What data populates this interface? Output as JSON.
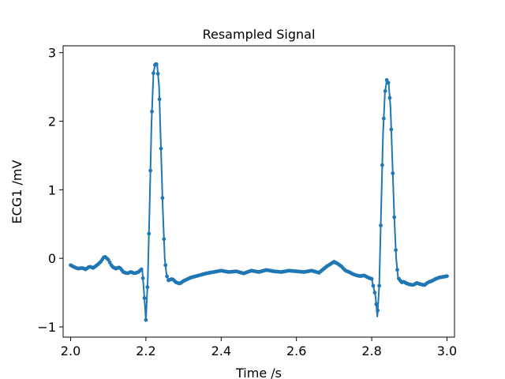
{
  "chart_data": {
    "type": "line",
    "title": "Resampled Signal",
    "xlabel": "Time /s",
    "ylabel": "ECG1 /mV",
    "xlim": [
      1.98,
      3.02
    ],
    "ylim": [
      -1.15,
      3.1
    ],
    "xticks": [
      2.0,
      2.2,
      2.4,
      2.6,
      2.8,
      3.0
    ],
    "xtick_labels": [
      "2.0",
      "2.2",
      "2.4",
      "2.6",
      "2.8",
      "3.0"
    ],
    "yticks": [
      -1,
      0,
      1,
      2,
      3
    ],
    "ytick_labels": [
      "−1",
      "0",
      "1",
      "2",
      "3"
    ],
    "grid": false,
    "marker": "circle",
    "series": [
      {
        "color": "#1f77b4",
        "x": [
          2.0,
          2.01,
          2.02,
          2.03,
          2.04,
          2.05,
          2.06,
          2.07,
          2.08,
          2.09,
          2.1,
          2.11,
          2.12,
          2.13,
          2.14,
          2.15,
          2.16,
          2.17,
          2.18,
          2.19,
          2.195,
          2.2,
          2.205,
          2.21,
          2.215,
          2.22,
          2.225,
          2.23,
          2.235,
          2.24,
          2.245,
          2.25,
          2.255,
          2.26,
          2.27,
          2.28,
          2.29,
          2.3,
          2.32,
          2.34,
          2.36,
          2.38,
          2.4,
          2.42,
          2.44,
          2.46,
          2.48,
          2.5,
          2.52,
          2.54,
          2.56,
          2.58,
          2.6,
          2.62,
          2.64,
          2.66,
          2.68,
          2.7,
          2.71,
          2.72,
          2.73,
          2.74,
          2.75,
          2.76,
          2.77,
          2.78,
          2.79,
          2.8,
          2.81,
          2.815,
          2.82,
          2.825,
          2.83,
          2.835,
          2.84,
          2.845,
          2.85,
          2.855,
          2.86,
          2.865,
          2.87,
          2.875,
          2.88,
          2.885,
          2.89,
          2.9,
          2.91,
          2.92,
          2.93,
          2.94,
          2.95,
          2.96,
          2.97,
          2.98,
          2.99,
          3.0
        ],
        "y": [
          -0.1,
          -0.13,
          -0.15,
          -0.14,
          -0.16,
          -0.12,
          -0.14,
          -0.1,
          -0.05,
          0.03,
          -0.02,
          -0.12,
          -0.15,
          -0.13,
          -0.2,
          -0.22,
          -0.2,
          -0.22,
          -0.2,
          -0.15,
          -0.5,
          -0.9,
          -0.3,
          0.8,
          2.0,
          2.7,
          2.85,
          2.82,
          2.5,
          1.6,
          0.7,
          0.0,
          -0.25,
          -0.32,
          -0.3,
          -0.35,
          -0.37,
          -0.33,
          -0.28,
          -0.25,
          -0.22,
          -0.2,
          -0.18,
          -0.2,
          -0.19,
          -0.22,
          -0.18,
          -0.2,
          -0.17,
          -0.19,
          -0.2,
          -0.18,
          -0.19,
          -0.2,
          -0.18,
          -0.21,
          -0.12,
          -0.05,
          -0.08,
          -0.12,
          -0.18,
          -0.2,
          -0.23,
          -0.25,
          -0.26,
          -0.25,
          -0.28,
          -0.3,
          -0.55,
          -0.85,
          -0.4,
          0.7,
          1.8,
          2.4,
          2.6,
          2.55,
          2.2,
          1.4,
          0.6,
          0.0,
          -0.28,
          -0.32,
          -0.35,
          -0.34,
          -0.36,
          -0.38,
          -0.39,
          -0.36,
          -0.38,
          -0.39,
          -0.35,
          -0.33,
          -0.3,
          -0.28,
          -0.27,
          -0.26
        ]
      }
    ]
  }
}
